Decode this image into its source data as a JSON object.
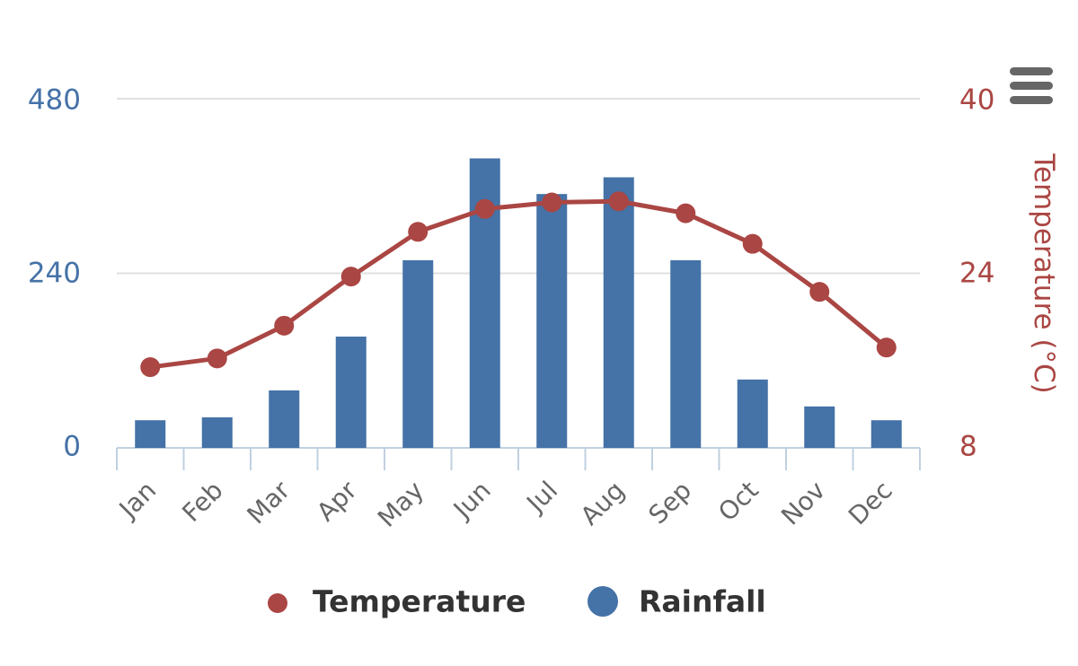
{
  "chart_data": {
    "type": "bar+line",
    "categories": [
      "Jan",
      "Feb",
      "Mar",
      "Apr",
      "May",
      "Jun",
      "Jul",
      "Aug",
      "Sep",
      "Oct",
      "Nov",
      "Dec"
    ],
    "series": [
      {
        "name": "Rainfall",
        "type": "bar",
        "axis": "left",
        "color": "#4572A7",
        "values": [
          38,
          42,
          79,
          153,
          258,
          398,
          349,
          372,
          258,
          94,
          57,
          38
        ]
      },
      {
        "name": "Temperature",
        "type": "line",
        "axis": "right",
        "color": "#AA4643",
        "values": [
          15.4,
          16.2,
          19.2,
          23.7,
          27.8,
          29.9,
          30.5,
          30.6,
          29.5,
          26.7,
          22.3,
          17.2
        ]
      }
    ],
    "left_axis": {
      "ticks": [
        "480",
        "240",
        "0"
      ],
      "range": [
        0,
        480
      ],
      "color": "#4572A7"
    },
    "right_axis": {
      "title": "Temperature (°C)",
      "ticks": [
        "40",
        "24",
        "8"
      ],
      "range": [
        8,
        40
      ],
      "color": "#AA4643"
    },
    "legend": {
      "position": "bottom-center",
      "items": [
        "Temperature",
        "Rainfall"
      ]
    },
    "grid": true
  },
  "menu": {
    "icon": "hamburger-icon"
  }
}
